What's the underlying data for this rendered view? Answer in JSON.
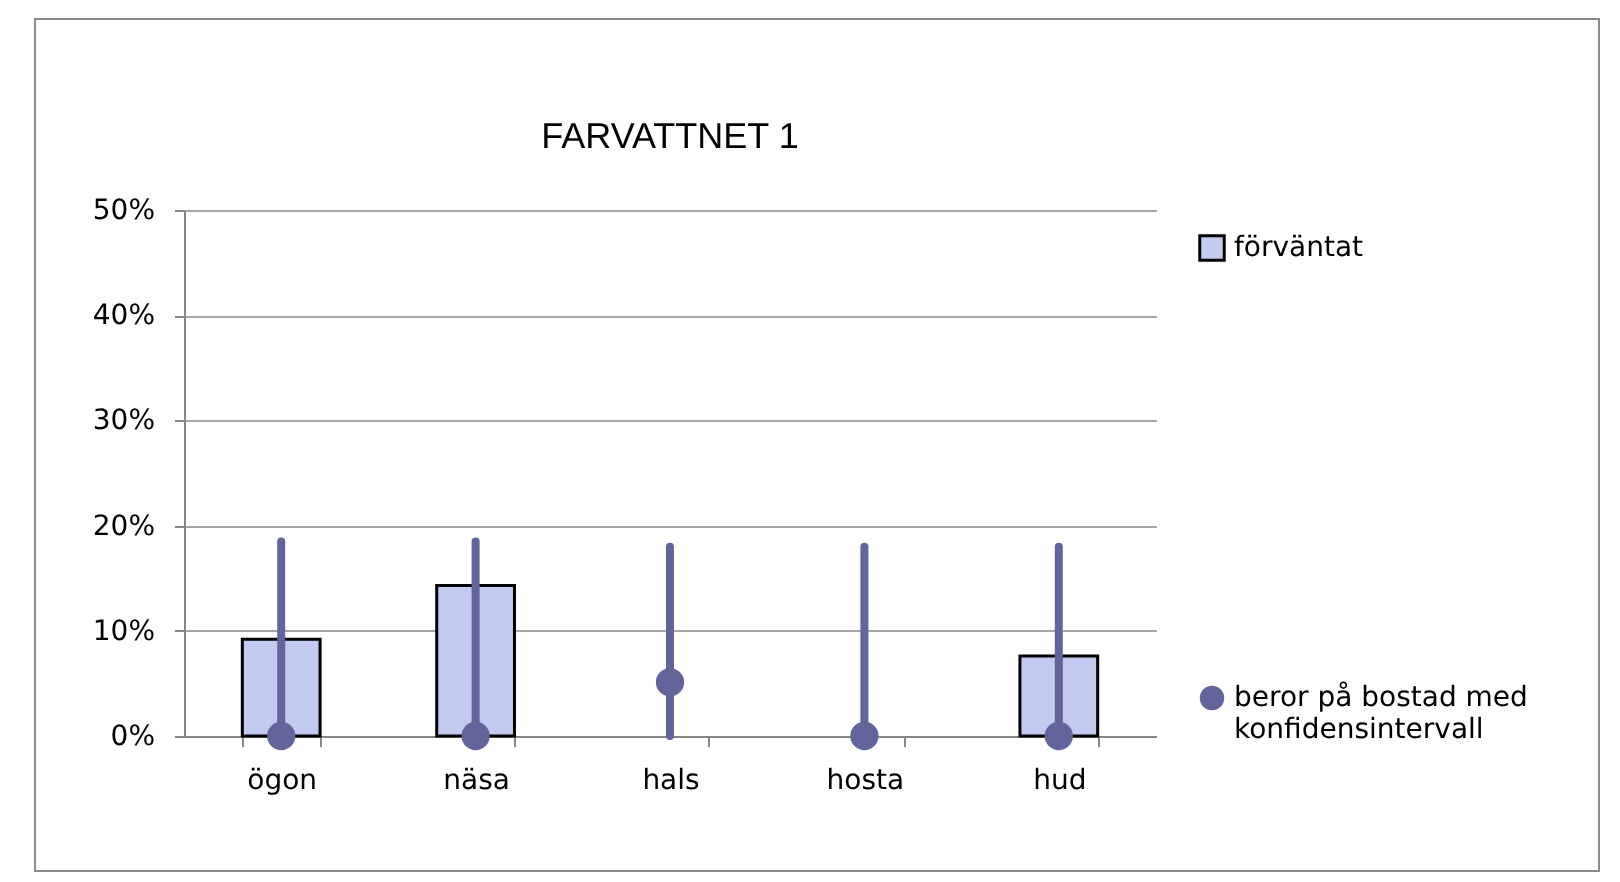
{
  "chart_data": {
    "type": "bar",
    "title": "FARVATTNET 1",
    "categories": [
      "ögon",
      "näsa",
      "hals",
      "hosta",
      "hud"
    ],
    "series": [
      {
        "name": "förväntat",
        "color": "#c3caef",
        "values": [
          9.2,
          14.3,
          null,
          null,
          7.6
        ]
      },
      {
        "name": "beror på bostad med konfidensintervall",
        "type": "scatter",
        "color": "#63649b",
        "values": [
          0,
          0,
          5.1,
          0,
          0
        ],
        "errors": [
          [
            0,
            18.5
          ],
          [
            0,
            18.5
          ],
          [
            0,
            18
          ],
          [
            0,
            18
          ],
          [
            0,
            18
          ]
        ]
      }
    ],
    "ylim": [
      0,
      50
    ],
    "yticks": [
      {
        "value": 0,
        "label": "0%"
      },
      {
        "value": 10,
        "label": "10%"
      },
      {
        "value": 20,
        "label": "20%"
      },
      {
        "value": 30,
        "label": "30%"
      },
      {
        "value": 40,
        "label": "40%"
      },
      {
        "value": 50,
        "label": "50%"
      }
    ],
    "grid": "y",
    "legend": "right",
    "marker": "circle"
  }
}
